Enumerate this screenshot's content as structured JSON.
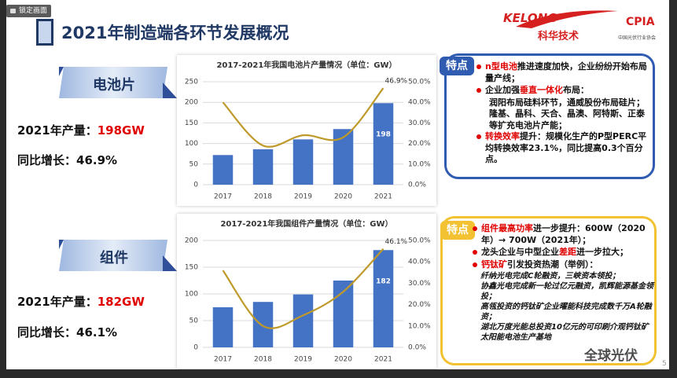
{
  "toolbar": {
    "lock_button": "锁定画面"
  },
  "header": {
    "title": "2021年制造端各环节发展概况",
    "logo_kelong": "KELONG",
    "logo_kelong_cn": "科华技术",
    "logo_cpia": "CPIA",
    "logo_cpia_cn": "中国光伏行业协会"
  },
  "sections": [
    {
      "banner": "电池片",
      "output_label": "2021年产量：",
      "output_value": "198GW",
      "growth": "同比增长：46.9%",
      "chart": {
        "type": "bar",
        "title": "2017-2021年我国电池片产量情况（单位：GW）",
        "categories": [
          "2017",
          "2018",
          "2019",
          "2020",
          "2021"
        ],
        "series": [
          {
            "type": "bar",
            "color": "#4472c4",
            "values": [
              72,
              86,
              110,
              135,
              198
            ],
            "data_labels": "last"
          },
          {
            "type": "line",
            "axis": "y2",
            "color": "#bf9a2b",
            "values": [
              40,
              19,
              24,
              23,
              46.9
            ],
            "value_labels": [
              null,
              null,
              null,
              null,
              "46.9%"
            ]
          }
        ],
        "ylim": [
          0,
          250
        ],
        "yticks": [
          0,
          50,
          100,
          150,
          200,
          250
        ],
        "y2lim": [
          0,
          50
        ],
        "y2ticks": [
          {
            "value": 0,
            "label": "0.0%"
          },
          {
            "value": 10,
            "label": "10.0%"
          },
          {
            "value": 20,
            "label": "20.0%"
          },
          {
            "value": 30,
            "label": "30.0%"
          },
          {
            "value": 40,
            "label": "40.0%"
          },
          {
            "value": 50,
            "label": "50.0%"
          }
        ],
        "grid": true
      },
      "features": {
        "tag": "特点",
        "color": "#2f5bb0",
        "items": [
          {
            "parts": [
              {
                "text": "n型电池",
                "highlight": true
              },
              {
                "text": "推进速度加快，企业纷纷开始布局量产线；"
              }
            ]
          },
          {
            "parts": [
              {
                "text": "企业加强"
              },
              {
                "text": "垂直一体化",
                "highlight": true
              },
              {
                "text": "布局："
              }
            ],
            "sub": [
              "润阳布局硅料环节，通威股份布局硅片；隆基、晶科、天合、晶澳、阿特斯、正泰等扩充电池片产能；"
            ]
          },
          {
            "parts": [
              {
                "text": "转换效率",
                "highlight": true
              },
              {
                "text": "提升：规模化生产的P型PERC平均转换效率23.1%，同比提高0.3个百分点。"
              }
            ]
          }
        ]
      }
    },
    {
      "banner": "组件",
      "output_label": "2021年产量：",
      "output_value": "182GW",
      "growth": "同比增长：46.1%",
      "chart": {
        "type": "bar",
        "title": "2017-2021年我国组件产量情况（单位：GW）",
        "categories": [
          "2017",
          "2018",
          "2019",
          "2020",
          "2021"
        ],
        "series": [
          {
            "type": "bar",
            "color": "#4472c4",
            "values": [
              75,
              85,
              99,
              125,
              182
            ],
            "data_labels": "last"
          },
          {
            "type": "line",
            "axis": "y2",
            "color": "#bf9a2b",
            "values": [
              36,
              10,
              15,
              26,
              46.1
            ],
            "value_labels": [
              null,
              null,
              null,
              null,
              "46.1%"
            ]
          }
        ],
        "ylim": [
          0,
          200
        ],
        "yticks": [
          0,
          50,
          100,
          150,
          200
        ],
        "y2lim": [
          0,
          50
        ],
        "y2ticks": [
          {
            "value": 0,
            "label": "0.0%"
          },
          {
            "value": 10,
            "label": "10.0%"
          },
          {
            "value": 20,
            "label": "20.0%"
          },
          {
            "value": 30,
            "label": "30.0%"
          },
          {
            "value": 40,
            "label": "40.0%"
          },
          {
            "value": 50,
            "label": "50.0%"
          }
        ],
        "grid": true
      },
      "features": {
        "tag": "特点",
        "color": "#f2c233",
        "items": [
          {
            "parts": [
              {
                "text": "组件最高功率",
                "highlight": true
              },
              {
                "text": "进一步提升：600W（2020年）→ 700W（2021年）；"
              }
            ]
          },
          {
            "parts": [
              {
                "text": "龙头企业与中型企业"
              },
              {
                "text": "差距",
                "highlight": true
              },
              {
                "text": "进一步拉大；"
              }
            ]
          },
          {
            "parts": [
              {
                "text": "钙钛矿",
                "highlight": true
              },
              {
                "text": "引发投资热潮（举例）："
              }
            ],
            "sub": [
              "纤纳光电完成C轮融资，三峡资本领投；",
              "协鑫光电完成新一轮过亿元融资，凯辉能源基金领投；",
              "高瓴投资的钙钛矿企业曜能科技完成数千万A轮融资；",
              "湖北万度光能总投资10亿元的可印刷介观钙钛矿太阳能电池生产基地"
            ]
          }
        ]
      }
    }
  ],
  "watermark": "全球光伏",
  "page_number": "5"
}
